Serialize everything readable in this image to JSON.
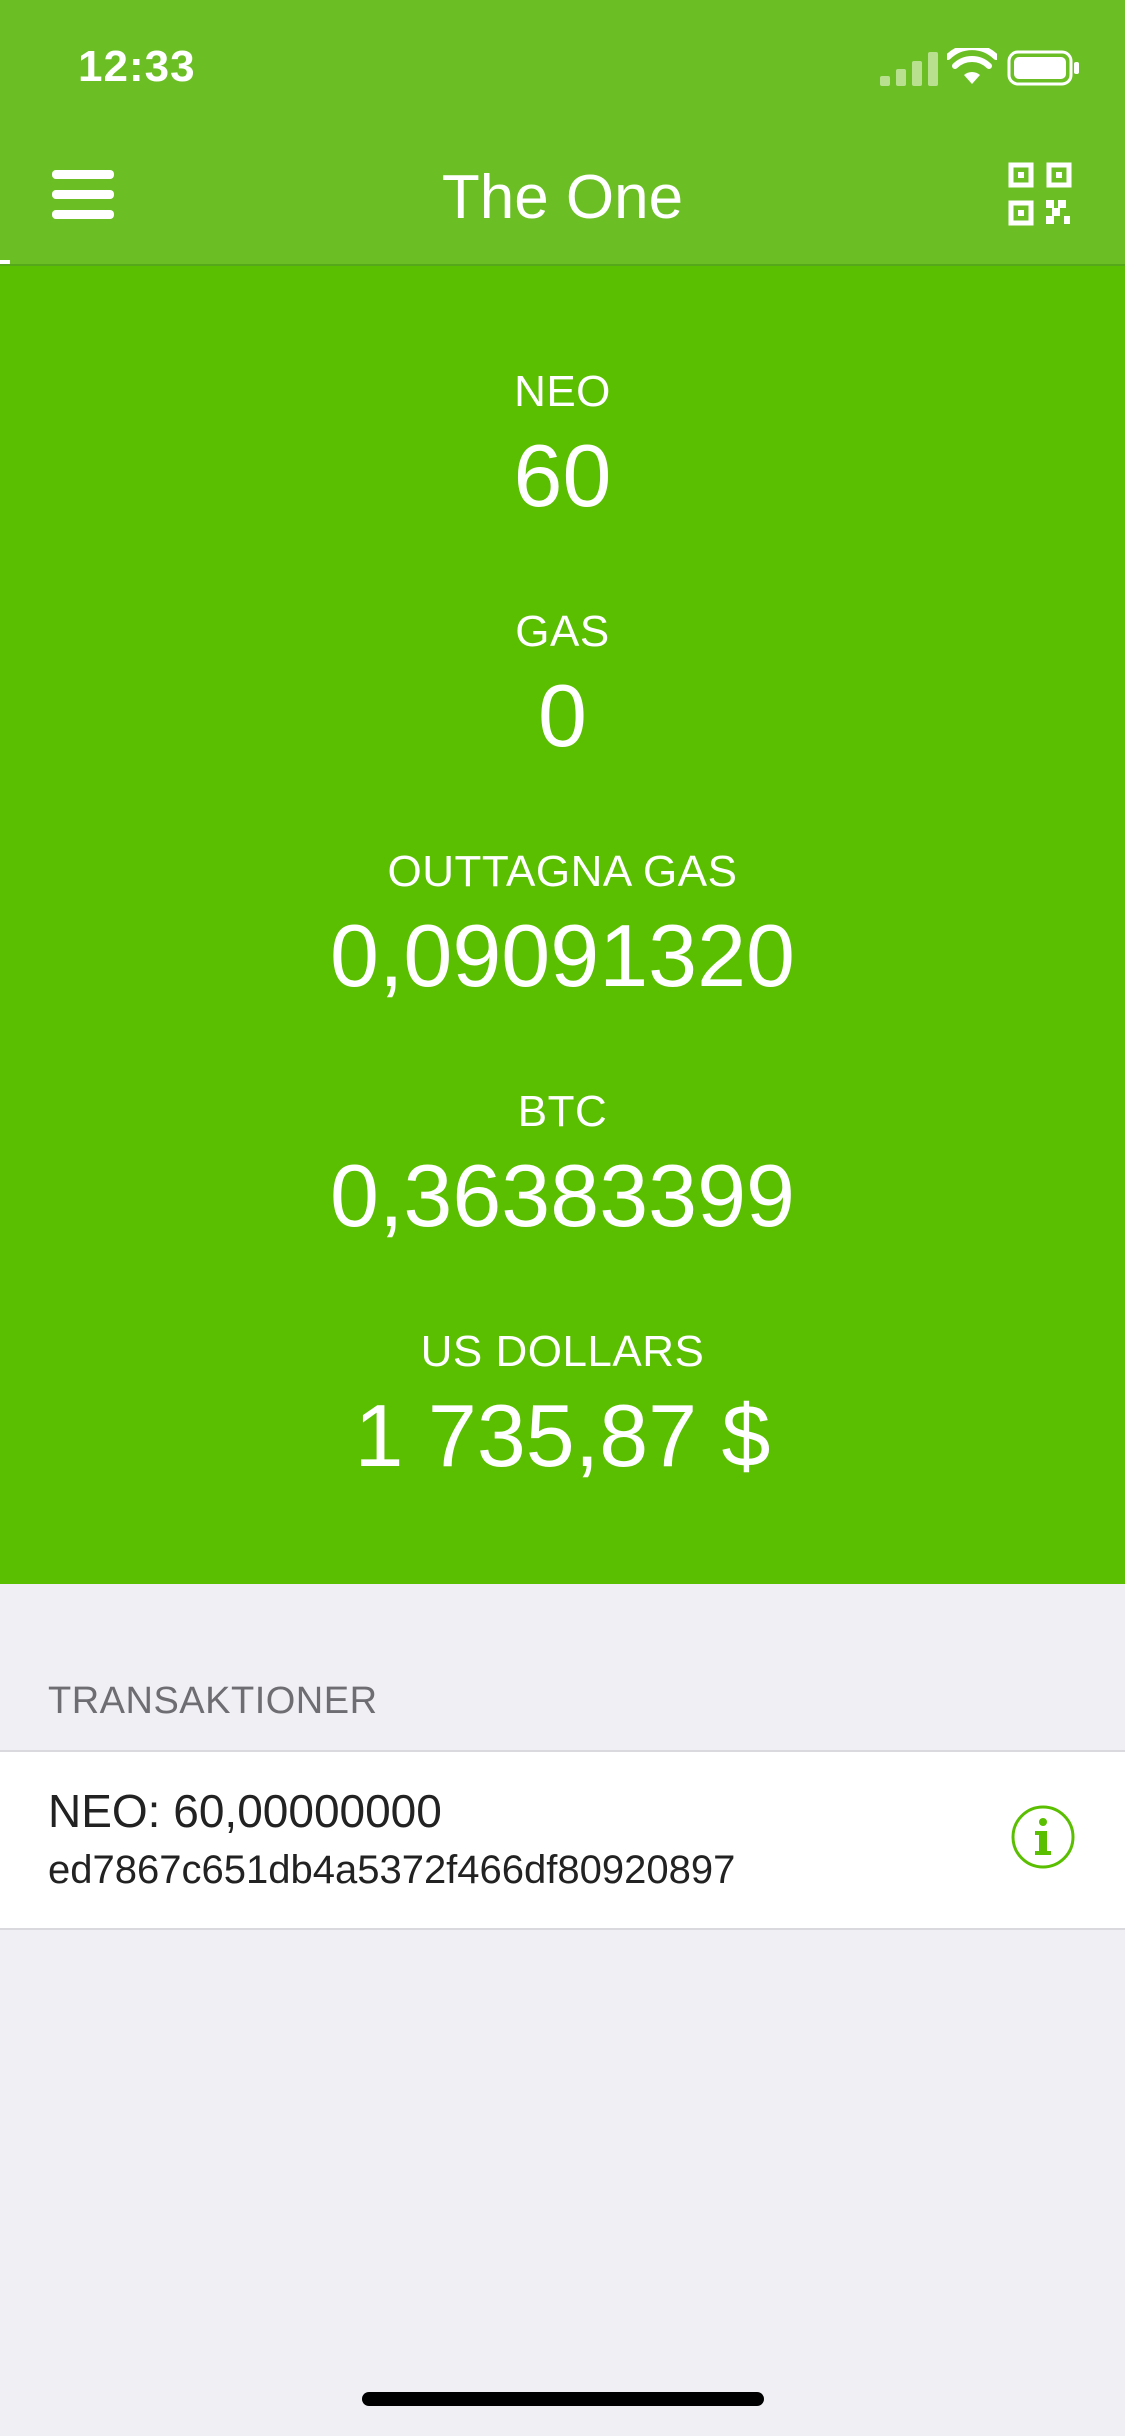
{
  "status_bar": {
    "time": "12:33"
  },
  "nav": {
    "title": "The One",
    "menu_icon": "hamburger-menu-icon",
    "qr_icon": "qr-code-icon"
  },
  "balances": [
    {
      "label": "NEO",
      "value": "60"
    },
    {
      "label": "GAS",
      "value": "0"
    },
    {
      "label": "OUTTAGNA GAS",
      "value": "0,09091320"
    },
    {
      "label": "BTC",
      "value": "0,36383399"
    },
    {
      "label": "US DOLLARS",
      "value": "1 735,87 $"
    }
  ],
  "transactions": {
    "header": "TRANSAKTIONER",
    "items": [
      {
        "amount": "NEO: 60,00000000",
        "hash": "ed7867c651db4a5372f466df80920897",
        "icon": "info-icon"
      }
    ]
  },
  "colors": {
    "topbar": "#6bbf24",
    "balances_bg": "#5bbf01",
    "accent": "#5bbf01",
    "background": "#efeff4"
  }
}
